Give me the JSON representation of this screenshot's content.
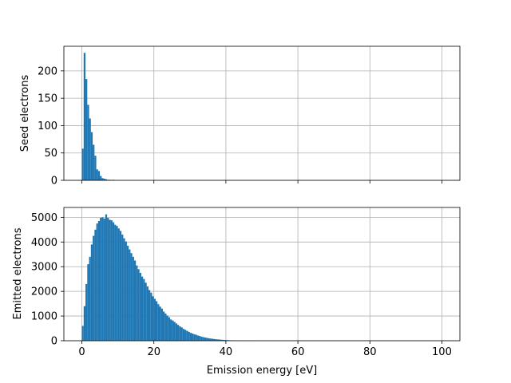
{
  "chart_data": [
    {
      "type": "bar",
      "panel": "top",
      "ylabel": "Seed electrons",
      "xlabel": "",
      "xlim": [
        -5,
        105
      ],
      "ylim": [
        0,
        245
      ],
      "grid": true,
      "xticks": [
        0,
        20,
        40,
        60,
        80,
        100
      ],
      "show_xtick_labels": false,
      "yticks": [
        0,
        50,
        100,
        150,
        200
      ],
      "bin_width": 0.5,
      "x": [
        0.0,
        0.5,
        1.0,
        1.5,
        2.0,
        2.5,
        3.0,
        3.5,
        4.0,
        4.5,
        5.0,
        5.5,
        6.0,
        6.5,
        7.0,
        7.5,
        8.0,
        8.5
      ],
      "values": [
        58,
        233,
        185,
        138,
        113,
        88,
        65,
        45,
        20,
        17,
        8,
        4,
        3,
        2,
        1,
        1,
        0,
        1
      ],
      "color": "#1f77b4"
    },
    {
      "type": "bar",
      "panel": "bottom",
      "ylabel": "Emitted electrons",
      "xlabel": "Emission energy [eV]",
      "xlim": [
        -5,
        105
      ],
      "ylim": [
        0,
        5400
      ],
      "grid": true,
      "xticks": [
        0,
        20,
        40,
        60,
        80,
        100
      ],
      "xtick_labels": [
        "0",
        "20",
        "40",
        "60",
        "80",
        "100"
      ],
      "yticks": [
        0,
        1000,
        2000,
        3000,
        4000,
        5000
      ],
      "bin_width": 0.5,
      "x": [
        0.0,
        0.5,
        1.0,
        1.5,
        2.0,
        2.5,
        3.0,
        3.5,
        4.0,
        4.5,
        5.0,
        5.5,
        6.0,
        6.5,
        7.0,
        7.5,
        8.0,
        8.5,
        9.0,
        9.5,
        10.0,
        10.5,
        11.0,
        11.5,
        12.0,
        12.5,
        13.0,
        13.5,
        14.0,
        14.5,
        15.0,
        15.5,
        16.0,
        16.5,
        17.0,
        17.5,
        18.0,
        18.5,
        19.0,
        19.5,
        20.0,
        20.5,
        21.0,
        21.5,
        22.0,
        22.5,
        23.0,
        23.5,
        24.0,
        24.5,
        25.0,
        25.5,
        26.0,
        26.5,
        27.0,
        27.5,
        28.0,
        28.5,
        29.0,
        29.5,
        30.0,
        30.5,
        31.0,
        31.5,
        32.0,
        32.5,
        33.0,
        33.5,
        34.0,
        34.5,
        35.0,
        35.5,
        36.0,
        36.5,
        37.0,
        37.5,
        38.0,
        38.5,
        39.0,
        39.5,
        40.0,
        40.5,
        41.0,
        41.5,
        42.0,
        42.5,
        43.0,
        43.5,
        44.0,
        44.5,
        45.0,
        45.5,
        46.0,
        46.5,
        47.0,
        47.5,
        48.0,
        48.5,
        49.0,
        49.5
      ],
      "values": [
        600,
        1400,
        2300,
        3100,
        3400,
        3900,
        4250,
        4500,
        4750,
        4850,
        4980,
        5000,
        4950,
        5120,
        4980,
        4900,
        4880,
        4800,
        4700,
        4650,
        4550,
        4450,
        4300,
        4150,
        4020,
        3850,
        3700,
        3550,
        3400,
        3250,
        3050,
        2900,
        2750,
        2600,
        2500,
        2350,
        2200,
        2050,
        1950,
        1800,
        1700,
        1600,
        1480,
        1380,
        1300,
        1180,
        1100,
        1020,
        950,
        860,
        820,
        760,
        700,
        640,
        580,
        540,
        480,
        440,
        400,
        360,
        320,
        290,
        260,
        240,
        210,
        190,
        160,
        145,
        130,
        115,
        100,
        90,
        80,
        70,
        60,
        55,
        48,
        42,
        36,
        30,
        25,
        22,
        18,
        15,
        12,
        10,
        8,
        7,
        6,
        5,
        4,
        3,
        3,
        2,
        2,
        1,
        1,
        1,
        0,
        1
      ],
      "color": "#1f77b4"
    }
  ]
}
